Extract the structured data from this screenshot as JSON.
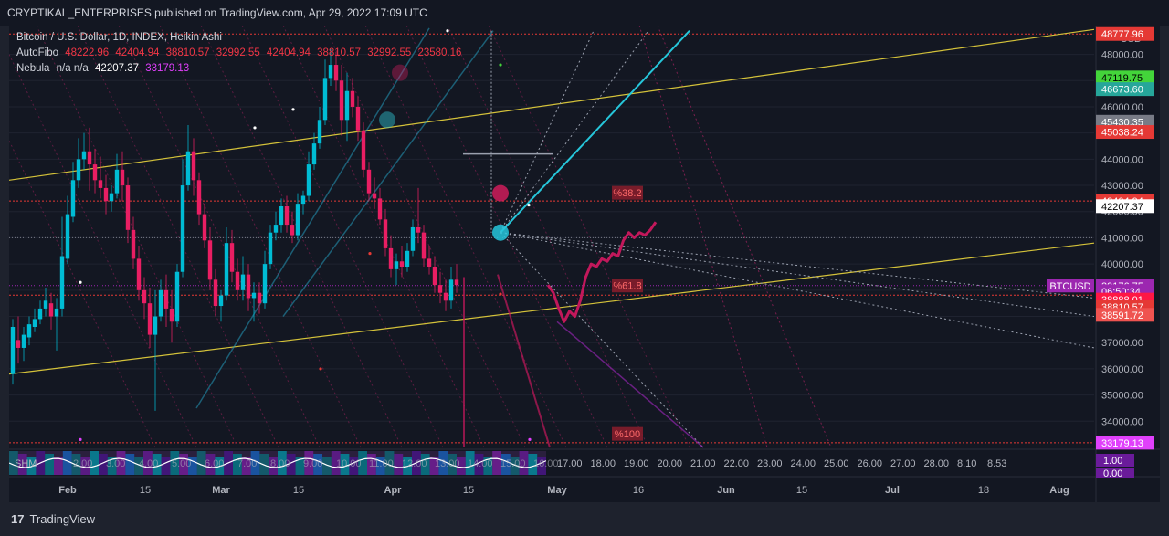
{
  "header": {
    "text": "CRYPTIKAL_ENTERPRISES published on TradingView.com, Apr 29, 2022 17:09 UTC"
  },
  "legend": {
    "symbol_line": "Bitcoin / U.S. Dollar, 1D, INDEX, Heikin Ashi",
    "autofibo_label": "AutoFibo",
    "autofibo_values": [
      "48222.96",
      "42404.94",
      "38810.57",
      "32992.55",
      "42404.94",
      "38810.57",
      "32992.55",
      "23580.16"
    ],
    "nebula_label": "Nebula",
    "nebula_na": "n/a  n/a",
    "nebula_value_1": "42207.37",
    "nebula_value_2": "33179.13"
  },
  "colors": {
    "background": "#131722",
    "bull": "#26a69a",
    "bull_bright": "#00bcd4",
    "bear": "#e91e63",
    "bear_dark": "#c2185b",
    "channel": "#d4c23a",
    "fib_red": "#e53935",
    "projection": "#c2185b",
    "grid": "#1f2330"
  },
  "axis": {
    "currency": "USD",
    "price_ticks": [
      "34000.00",
      "35000.00",
      "36000.00",
      "37000.00",
      "38000.00",
      "39000.00",
      "40000.00",
      "41000.00",
      "42000.00",
      "43000.00",
      "44000.00",
      "45000.00",
      "46000.00",
      "47000.00",
      "48000.00"
    ],
    "time_ticks": [
      {
        "label": "Feb",
        "bold": true
      },
      {
        "label": "15",
        "bold": false
      },
      {
        "label": "Mar",
        "bold": true
      },
      {
        "label": "15",
        "bold": false
      },
      {
        "label": "Apr",
        "bold": true
      },
      {
        "label": "15",
        "bold": false
      },
      {
        "label": "May",
        "bold": true
      },
      {
        "label": "16",
        "bold": false
      },
      {
        "label": "Jun",
        "bold": true
      },
      {
        "label": "15",
        "bold": false
      },
      {
        "label": "Jul",
        "bold": true
      },
      {
        "label": "18",
        "bold": false
      },
      {
        "label": "Aug",
        "bold": true
      }
    ]
  },
  "price_tags": [
    {
      "text": "48777.96",
      "price": 48777.96,
      "bg": "#e53935",
      "fg": "#ffffff"
    },
    {
      "text": "47119.75",
      "price": 47119.75,
      "bg": "#43d43a",
      "fg": "#000000"
    },
    {
      "text": "46673.60",
      "price": 46673.6,
      "bg": "#26a69a",
      "fg": "#ffffff"
    },
    {
      "text": "45430.35",
      "price": 45430.35,
      "bg": "#787b86",
      "fg": "#ffffff"
    },
    {
      "text": "45038.24",
      "price": 45038.24,
      "bg": "#e53935",
      "fg": "#ffffff"
    },
    {
      "text": "42404.94",
      "price": 42404.94,
      "bg": "#e53935",
      "fg": "#ffffff"
    },
    {
      "text": "42207.37",
      "price": 42207.37,
      "bg": "#ffffff",
      "fg": "#000000"
    },
    {
      "text": "39176.75",
      "price": 39176.75,
      "bg": "#9c27b0",
      "fg": "#ffffff"
    },
    {
      "text": "06:50:34",
      "price": 38960,
      "bg": "#9c27b0",
      "fg": "#ffffff"
    },
    {
      "text": "38888.01",
      "price": 38640,
      "bg": "#ff1744",
      "fg": "#ffffff"
    },
    {
      "text": "38810.57",
      "price": 38360,
      "bg": "#e53935",
      "fg": "#ffffff"
    },
    {
      "text": "38591.72",
      "price": 38060,
      "bg": "#ef5350",
      "fg": "#ffffff"
    },
    {
      "text": "33179.13",
      "price": 33179.13,
      "bg": "#e040fb",
      "fg": "#ffffff"
    }
  ],
  "symbol_badge": "BTCUSD",
  "fib_labels": [
    {
      "text": "%38.2",
      "price": 42700
    },
    {
      "text": "%61.8",
      "price": 39160
    },
    {
      "text": "%100",
      "price": 33500
    }
  ],
  "indicator": {
    "name": "SHM",
    "scale": [
      "1.00",
      "0.00"
    ],
    "hidden_values": [
      "2.00",
      "3.00",
      "4.00",
      "5.00",
      "6.00",
      "7.00",
      "8.00",
      "9.00",
      "10.00",
      "11.00",
      "12.00",
      "13.00",
      "14.00",
      "15.00",
      "16.00"
    ],
    "values": [
      "17.00",
      "18.00",
      "19.00",
      "20.00",
      "21.00",
      "22.00",
      "23.00",
      "24.00",
      "25.00",
      "26.00",
      "27.00",
      "28.00",
      "8.10",
      "8.53"
    ]
  },
  "footer": {
    "logo": "17",
    "brand": "TradingView"
  },
  "chart_data": {
    "type": "candlestick",
    "symbol": "Bitcoin / U.S. Dollar, 1D, INDEX, Heikin Ashi",
    "y_unit": "USD",
    "ylim": [
      33000,
      49100
    ],
    "date_start": "2022-01-25",
    "candles": [
      {
        "o": 35800,
        "h": 37900,
        "l": 35400,
        "c": 37600
      },
      {
        "o": 37100,
        "h": 38000,
        "l": 36200,
        "c": 36800
      },
      {
        "o": 36800,
        "h": 37600,
        "l": 36300,
        "c": 37300
      },
      {
        "o": 37200,
        "h": 38000,
        "l": 36900,
        "c": 37700
      },
      {
        "o": 37600,
        "h": 38300,
        "l": 37400,
        "c": 37900
      },
      {
        "o": 37900,
        "h": 38600,
        "l": 37700,
        "c": 38300
      },
      {
        "o": 38300,
        "h": 39100,
        "l": 38000,
        "c": 38600
      },
      {
        "o": 38500,
        "h": 38900,
        "l": 37500,
        "c": 38000
      },
      {
        "o": 38000,
        "h": 38700,
        "l": 36700,
        "c": 38300
      },
      {
        "o": 38300,
        "h": 41800,
        "l": 38000,
        "c": 40300
      },
      {
        "o": 40200,
        "h": 42600,
        "l": 40000,
        "c": 41900
      },
      {
        "o": 41800,
        "h": 43900,
        "l": 41600,
        "c": 43200
      },
      {
        "o": 43200,
        "h": 44800,
        "l": 42900,
        "c": 44000
      },
      {
        "o": 44000,
        "h": 45000,
        "l": 43600,
        "c": 44300
      },
      {
        "o": 44300,
        "h": 45200,
        "l": 42800,
        "c": 43800
      },
      {
        "o": 43800,
        "h": 44400,
        "l": 42700,
        "c": 43200
      },
      {
        "o": 43200,
        "h": 44100,
        "l": 42500,
        "c": 42900
      },
      {
        "o": 42900,
        "h": 43400,
        "l": 41900,
        "c": 42400
      },
      {
        "o": 42400,
        "h": 43000,
        "l": 42000,
        "c": 42700
      },
      {
        "o": 42700,
        "h": 44200,
        "l": 42500,
        "c": 43600
      },
      {
        "o": 43600,
        "h": 44300,
        "l": 42400,
        "c": 43000
      },
      {
        "o": 43000,
        "h": 43300,
        "l": 40800,
        "c": 41300
      },
      {
        "o": 41300,
        "h": 41800,
        "l": 39800,
        "c": 40200
      },
      {
        "o": 40200,
        "h": 40700,
        "l": 38600,
        "c": 39000
      },
      {
        "o": 39000,
        "h": 39500,
        "l": 37900,
        "c": 38500
      },
      {
        "o": 38500,
        "h": 39100,
        "l": 36800,
        "c": 37300
      },
      {
        "o": 37300,
        "h": 39000,
        "l": 34400,
        "c": 38000
      },
      {
        "o": 38000,
        "h": 39400,
        "l": 37800,
        "c": 39000
      },
      {
        "o": 39000,
        "h": 39600,
        "l": 37600,
        "c": 38300
      },
      {
        "o": 38300,
        "h": 39000,
        "l": 37000,
        "c": 37800
      },
      {
        "o": 37800,
        "h": 40000,
        "l": 37600,
        "c": 39700
      },
      {
        "o": 39700,
        "h": 44000,
        "l": 39500,
        "c": 43000
      },
      {
        "o": 43000,
        "h": 45300,
        "l": 42800,
        "c": 44300
      },
      {
        "o": 44300,
        "h": 44800,
        "l": 42600,
        "c": 43200
      },
      {
        "o": 43200,
        "h": 43500,
        "l": 41500,
        "c": 41900
      },
      {
        "o": 41900,
        "h": 42300,
        "l": 40600,
        "c": 40900
      },
      {
        "o": 40900,
        "h": 41400,
        "l": 39000,
        "c": 39400
      },
      {
        "o": 39400,
        "h": 39800,
        "l": 38000,
        "c": 38400
      },
      {
        "o": 38400,
        "h": 39000,
        "l": 37800,
        "c": 38800
      },
      {
        "o": 38800,
        "h": 41400,
        "l": 38600,
        "c": 40800
      },
      {
        "o": 40800,
        "h": 41300,
        "l": 39300,
        "c": 39700
      },
      {
        "o": 39700,
        "h": 40200,
        "l": 38600,
        "c": 39000
      },
      {
        "o": 39000,
        "h": 40300,
        "l": 38600,
        "c": 39600
      },
      {
        "o": 39600,
        "h": 40000,
        "l": 38200,
        "c": 38700
      },
      {
        "o": 38700,
        "h": 39300,
        "l": 37800,
        "c": 38900
      },
      {
        "o": 38900,
        "h": 39300,
        "l": 38100,
        "c": 38500
      },
      {
        "o": 38500,
        "h": 40500,
        "l": 38300,
        "c": 40000
      },
      {
        "o": 40000,
        "h": 41500,
        "l": 39800,
        "c": 41200
      },
      {
        "o": 41200,
        "h": 42000,
        "l": 40900,
        "c": 41500
      },
      {
        "o": 41500,
        "h": 42500,
        "l": 41200,
        "c": 42200
      },
      {
        "o": 42200,
        "h": 42600,
        "l": 41200,
        "c": 41500
      },
      {
        "o": 41500,
        "h": 42000,
        "l": 40800,
        "c": 41100
      },
      {
        "o": 41100,
        "h": 42700,
        "l": 40900,
        "c": 42300
      },
      {
        "o": 42300,
        "h": 42800,
        "l": 41900,
        "c": 42600
      },
      {
        "o": 42600,
        "h": 44300,
        "l": 42400,
        "c": 43800
      },
      {
        "o": 43800,
        "h": 45000,
        "l": 43600,
        "c": 44600
      },
      {
        "o": 44600,
        "h": 46000,
        "l": 44400,
        "c": 45500
      },
      {
        "o": 45500,
        "h": 47800,
        "l": 45300,
        "c": 47100
      },
      {
        "o": 47100,
        "h": 48200,
        "l": 46800,
        "c": 47600
      },
      {
        "o": 47600,
        "h": 48100,
        "l": 46600,
        "c": 47000
      },
      {
        "o": 47000,
        "h": 47600,
        "l": 44900,
        "c": 45500
      },
      {
        "o": 45500,
        "h": 47300,
        "l": 44700,
        "c": 46600
      },
      {
        "o": 46600,
        "h": 47100,
        "l": 45600,
        "c": 46000
      },
      {
        "o": 46000,
        "h": 46400,
        "l": 44700,
        "c": 45100
      },
      {
        "o": 45100,
        "h": 45400,
        "l": 43300,
        "c": 43600
      },
      {
        "o": 43600,
        "h": 43900,
        "l": 42400,
        "c": 42700
      },
      {
        "o": 42700,
        "h": 43300,
        "l": 42100,
        "c": 42500
      },
      {
        "o": 42500,
        "h": 42900,
        "l": 41500,
        "c": 41700
      },
      {
        "o": 41700,
        "h": 42100,
        "l": 40300,
        "c": 40600
      },
      {
        "o": 40600,
        "h": 41100,
        "l": 39500,
        "c": 39800
      },
      {
        "o": 39800,
        "h": 40400,
        "l": 39200,
        "c": 40100
      },
      {
        "o": 40100,
        "h": 40700,
        "l": 39500,
        "c": 39900
      },
      {
        "o": 39900,
        "h": 40800,
        "l": 39700,
        "c": 40500
      },
      {
        "o": 40500,
        "h": 41700,
        "l": 40300,
        "c": 41400
      },
      {
        "o": 41400,
        "h": 42900,
        "l": 40800,
        "c": 41200
      },
      {
        "o": 41200,
        "h": 41500,
        "l": 39900,
        "c": 40200
      },
      {
        "o": 40200,
        "h": 40700,
        "l": 39600,
        "c": 39900
      },
      {
        "o": 39900,
        "h": 40300,
        "l": 38900,
        "c": 39200
      },
      {
        "o": 39200,
        "h": 39700,
        "l": 38500,
        "c": 38900
      },
      {
        "o": 38900,
        "h": 39400,
        "l": 38200,
        "c": 38600
      },
      {
        "o": 38600,
        "h": 39900,
        "l": 38300,
        "c": 39400
      },
      {
        "o": 39400,
        "h": 40000,
        "l": 38900,
        "c": 39200
      }
    ],
    "projection_path": [
      39200,
      38900,
      38300,
      37800,
      38200,
      38000,
      38600,
      39500,
      40000,
      39900,
      40200,
      40100,
      40400,
      40300,
      40900,
      41200,
      41000,
      41200,
      41100,
      41300,
      41600
    ],
    "fib_levels": [
      42404.94,
      38810.57,
      33179.13,
      48777.96
    ],
    "channel": {
      "upper": {
        "from": [
          "2022-01-25",
          43000
        ],
        "to": [
          "2022-08-10",
          49000
        ]
      },
      "lower": {
        "from": [
          "2022-01-25",
          36000
        ],
        "to": [
          "2022-08-10",
          40800
        ]
      }
    },
    "grid": true
  }
}
